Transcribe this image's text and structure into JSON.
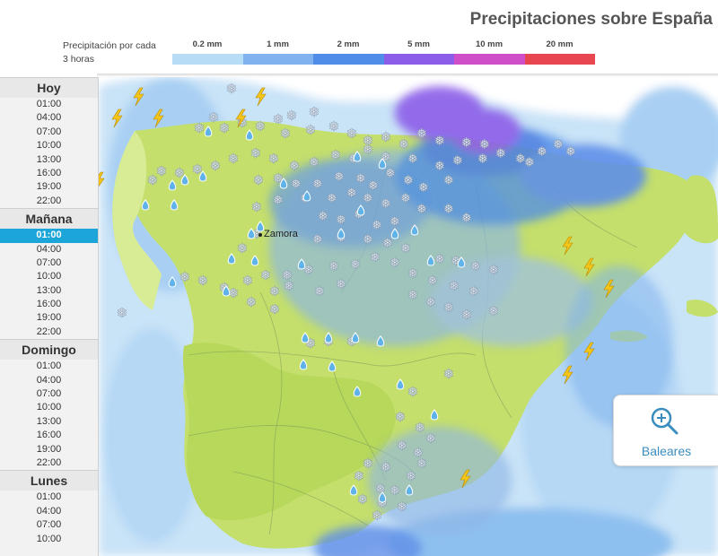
{
  "title": "Precipitaciones sobre España",
  "legend": {
    "caption": "Precipitación por cada 3 horas",
    "items": [
      {
        "label": "0.2 mm",
        "color": "#b7dcf5"
      },
      {
        "label": "1 mm",
        "color": "#7fb2ee"
      },
      {
        "label": "2 mm",
        "color": "#4f8de8"
      },
      {
        "label": "5 mm",
        "color": "#8c5de8"
      },
      {
        "label": "10 mm",
        "color": "#cf4fc8"
      },
      {
        "label": "20 mm",
        "color": "#e8474f"
      }
    ]
  },
  "timeline": [
    {
      "day": "Hoy",
      "hours": [
        "01:00",
        "04:00",
        "07:00",
        "10:00",
        "13:00",
        "16:00",
        "19:00",
        "22:00"
      ]
    },
    {
      "day": "Mañana",
      "hours": [
        "01:00",
        "04:00",
        "07:00",
        "10:00",
        "13:00",
        "16:00",
        "19:00",
        "22:00"
      ],
      "selected_hour": "01:00"
    },
    {
      "day": "Domingo",
      "hours": [
        "01:00",
        "04:00",
        "07:00",
        "10:00",
        "13:00",
        "16:00",
        "19:00",
        "22:00"
      ]
    },
    {
      "day": "Lunes",
      "hours": [
        "01:00",
        "04:00",
        "07:00",
        "10:00"
      ]
    }
  ],
  "map": {
    "city": "Zamora",
    "baleares_button": "Baleares",
    "icons": [
      "snowflake-icon",
      "raindrop-icon",
      "lightning-icon",
      "magnifier-icon"
    ]
  },
  "colors": {
    "land": "#c4df6c",
    "land_light": "#d8ec96",
    "sea": "#ffffff",
    "selected": "#1ba5d8"
  }
}
